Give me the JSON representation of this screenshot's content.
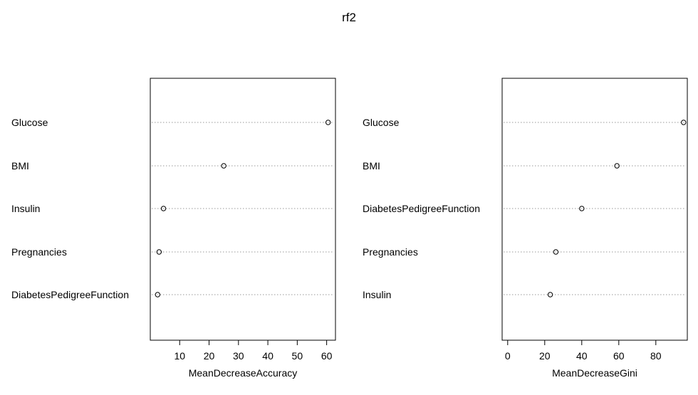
{
  "chart_data": {
    "type": "scatter",
    "subtype": "dotchart",
    "title": "rf2",
    "grid": "dotted horizontal guide per variable",
    "panels": [
      {
        "xlabel": "MeanDecreaseAccuracy",
        "ticks": [
          10,
          20,
          30,
          40,
          50,
          60
        ],
        "xlim": [
          0,
          63
        ],
        "categories": [
          "Glucose",
          "BMI",
          "Insulin",
          "Pregnancies",
          "DiabetesPedigreeFunction"
        ],
        "values": [
          60.5,
          25,
          4.5,
          3,
          2.5
        ]
      },
      {
        "xlabel": "MeanDecreaseGini",
        "ticks": [
          0,
          20,
          40,
          60,
          80
        ],
        "xlim": [
          -3,
          97
        ],
        "categories": [
          "Glucose",
          "BMI",
          "DiabetesPedigreeFunction",
          "Pregnancies",
          "Insulin"
        ],
        "values": [
          95,
          59,
          40,
          26,
          23
        ]
      }
    ]
  }
}
